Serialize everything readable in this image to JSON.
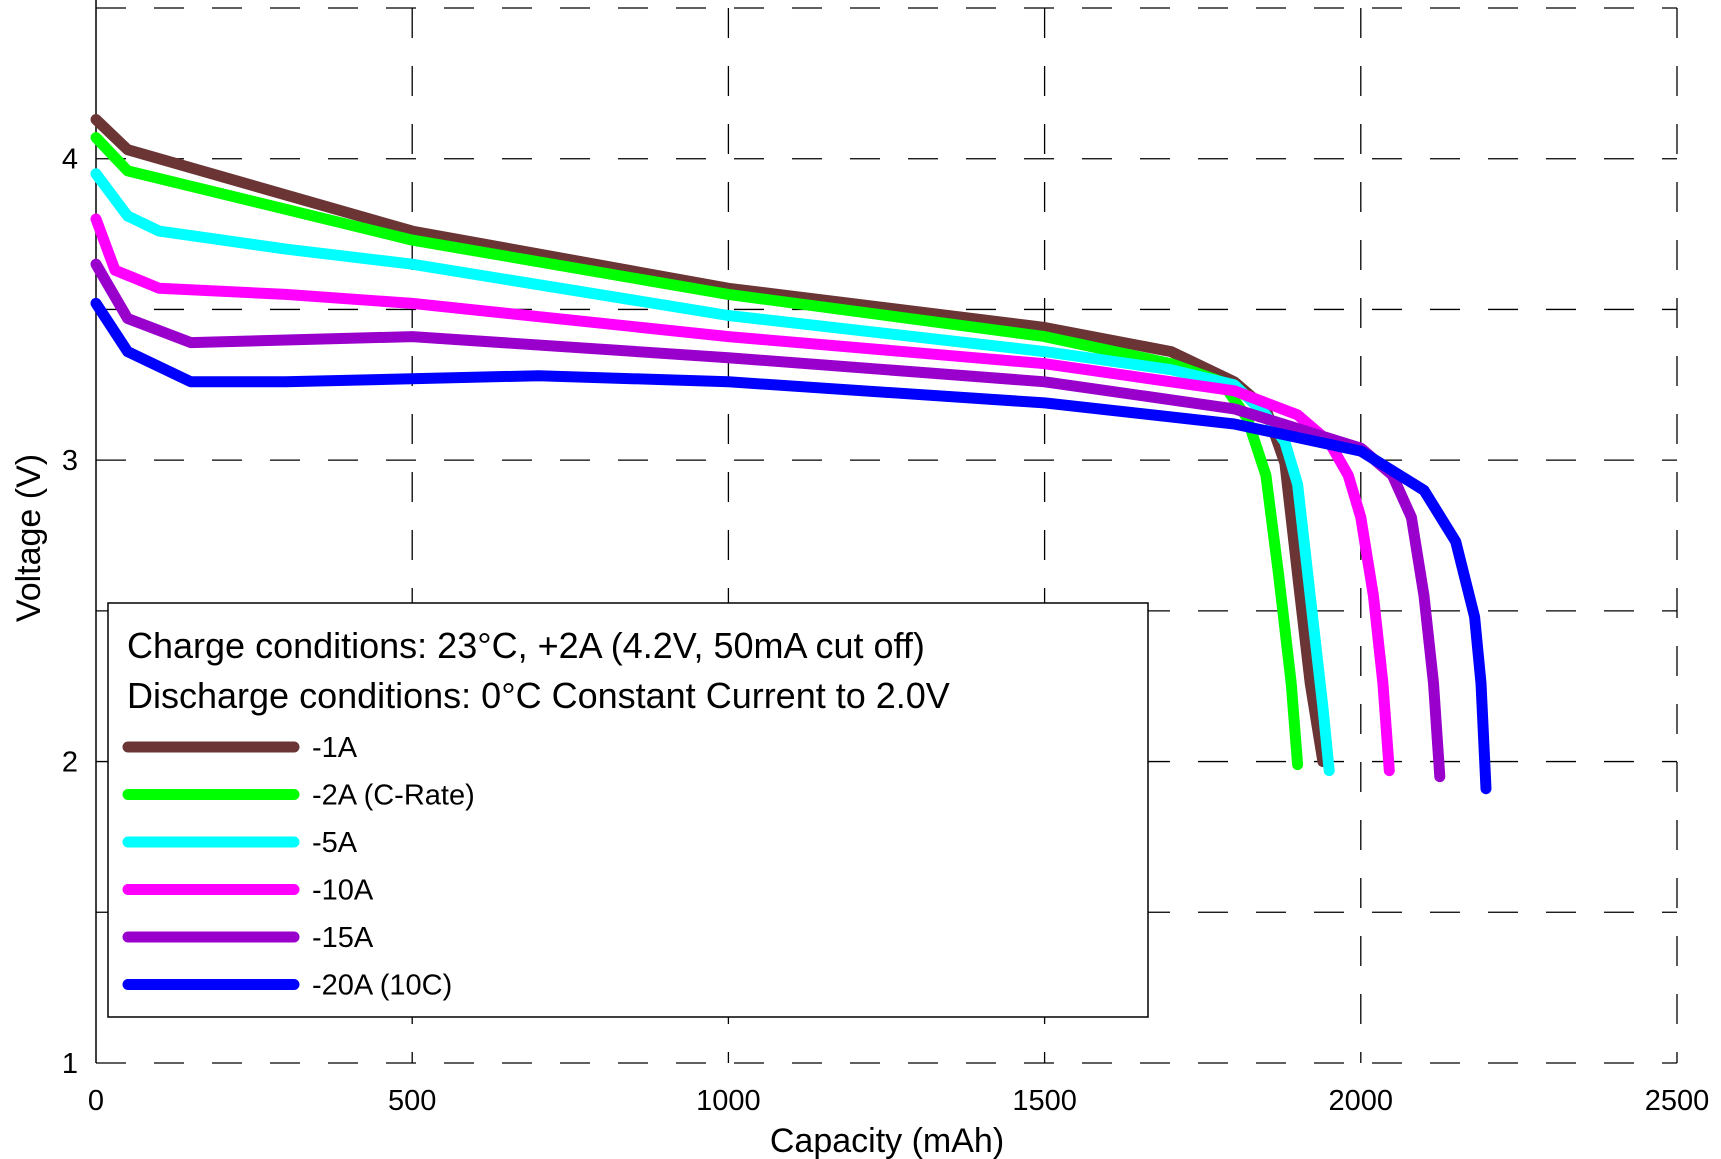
{
  "chart_data": {
    "type": "line",
    "xlabel": "Capacity (mAh)",
    "ylabel": "Voltage (V)",
    "xlim": [
      0,
      2500
    ],
    "xticks": [
      0,
      500,
      1000,
      1500,
      2000,
      2500
    ],
    "ylim": [
      1,
      4.5
    ],
    "yticks": [
      1,
      2,
      3,
      4
    ],
    "minor_yticks": [
      1.5,
      2.5,
      3.5,
      4.5
    ],
    "grid": true,
    "legend": "lower left",
    "annotations": [
      "Charge conditions: 23°C, +2A (4.2V, 50mA cut off)",
      "Discharge conditions: 0°C Constant Current to 2.0V"
    ],
    "series": [
      {
        "name": "-1A",
        "color": "#6b3535",
        "x": [
          0,
          50,
          500,
          1000,
          1500,
          1700,
          1800,
          1850,
          1880,
          1900,
          1920,
          1940
        ],
        "values": [
          4.13,
          4.03,
          3.76,
          3.57,
          3.44,
          3.36,
          3.26,
          3.17,
          2.99,
          2.62,
          2.26,
          2.0
        ]
      },
      {
        "name": "-2A (C-Rate)",
        "color": "#00ff00",
        "x": [
          0,
          50,
          500,
          1000,
          1500,
          1700,
          1780,
          1820,
          1850,
          1870,
          1890,
          1900
        ],
        "values": [
          4.07,
          3.96,
          3.73,
          3.55,
          3.41,
          3.32,
          3.26,
          3.14,
          2.95,
          2.62,
          2.26,
          1.99
        ]
      },
      {
        "name": "-5A",
        "color": "#00ffff",
        "x": [
          0,
          50,
          100,
          300,
          500,
          1000,
          1500,
          1700,
          1800,
          1850,
          1880,
          1900,
          1920,
          1940,
          1950
        ],
        "values": [
          3.95,
          3.81,
          3.76,
          3.7,
          3.65,
          3.48,
          3.36,
          3.3,
          3.25,
          3.15,
          3.06,
          2.92,
          2.55,
          2.18,
          1.97
        ]
      },
      {
        "name": "-10A",
        "color": "#ff00ff",
        "x": [
          0,
          30,
          100,
          300,
          500,
          1000,
          1500,
          1800,
          1900,
          1950,
          1980,
          2000,
          2020,
          2035,
          2045
        ],
        "values": [
          3.8,
          3.63,
          3.57,
          3.55,
          3.52,
          3.41,
          3.32,
          3.23,
          3.15,
          3.06,
          2.95,
          2.81,
          2.55,
          2.26,
          1.97
        ]
      },
      {
        "name": "-15A",
        "color": "#9900cc",
        "x": [
          0,
          50,
          150,
          500,
          1000,
          1500,
          1800,
          2000,
          2050,
          2080,
          2100,
          2115,
          2125
        ],
        "values": [
          3.65,
          3.47,
          3.39,
          3.41,
          3.34,
          3.26,
          3.17,
          3.04,
          2.95,
          2.81,
          2.55,
          2.26,
          1.95
        ]
      },
      {
        "name": "-20A (10C)",
        "color": "#0000ff",
        "x": [
          0,
          50,
          150,
          300,
          700,
          1000,
          1500,
          1800,
          2000,
          2100,
          2150,
          2180,
          2190,
          2198
        ],
        "values": [
          3.52,
          3.36,
          3.26,
          3.26,
          3.28,
          3.26,
          3.19,
          3.12,
          3.03,
          2.9,
          2.73,
          2.48,
          2.26,
          1.91
        ]
      }
    ]
  }
}
